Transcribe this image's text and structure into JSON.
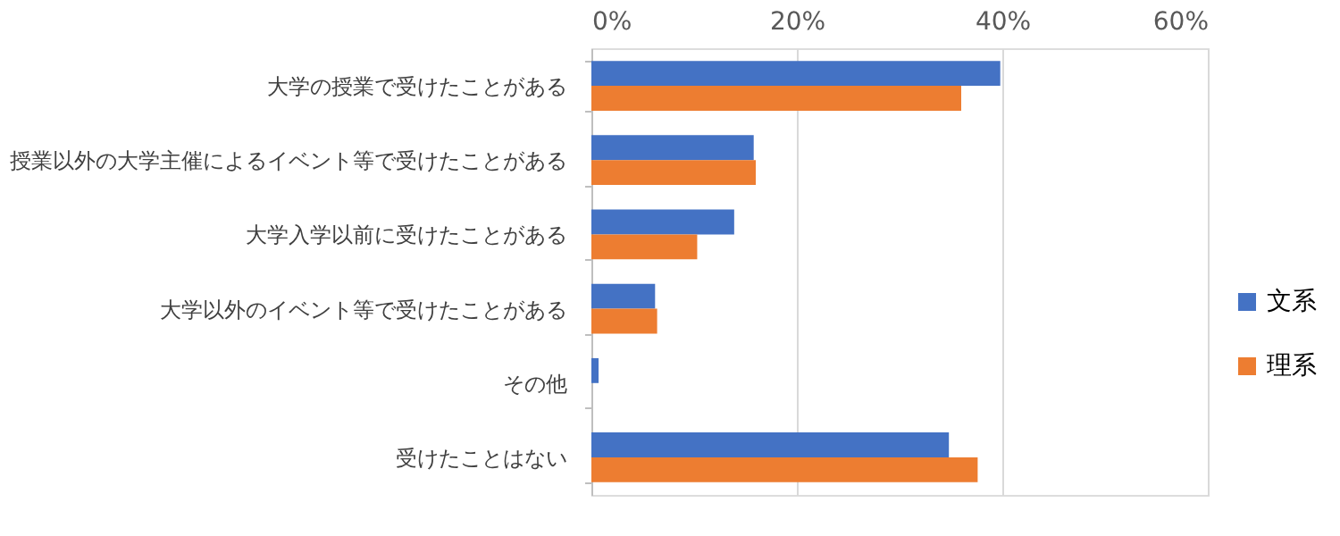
{
  "chart_data": {
    "type": "bar",
    "orientation": "horizontal",
    "categories": [
      "大学の授業で受けたことがある",
      "授業以外の大学主催によるイベント等で受けたことがある",
      "大学入学以前に受けたことがある",
      "大学以外のイベント等で受けたことがある",
      "その他",
      "受けたことはない"
    ],
    "series": [
      {
        "name": "文系",
        "color": "#4472c4",
        "values": [
          39.8,
          15.8,
          13.9,
          6.2,
          0.7,
          34.8
        ]
      },
      {
        "name": "理系",
        "color": "#ed7d31",
        "values": [
          36.0,
          16.0,
          10.3,
          6.4,
          0,
          37.6
        ]
      }
    ],
    "xlim": [
      0,
      60
    ],
    "xticks": [
      {
        "value": 0,
        "label": "0%"
      },
      {
        "value": 20,
        "label": "20%"
      },
      {
        "value": 40,
        "label": "40%"
      },
      {
        "value": 60,
        "label": "60%"
      }
    ],
    "grid": "x",
    "legend": "right"
  }
}
